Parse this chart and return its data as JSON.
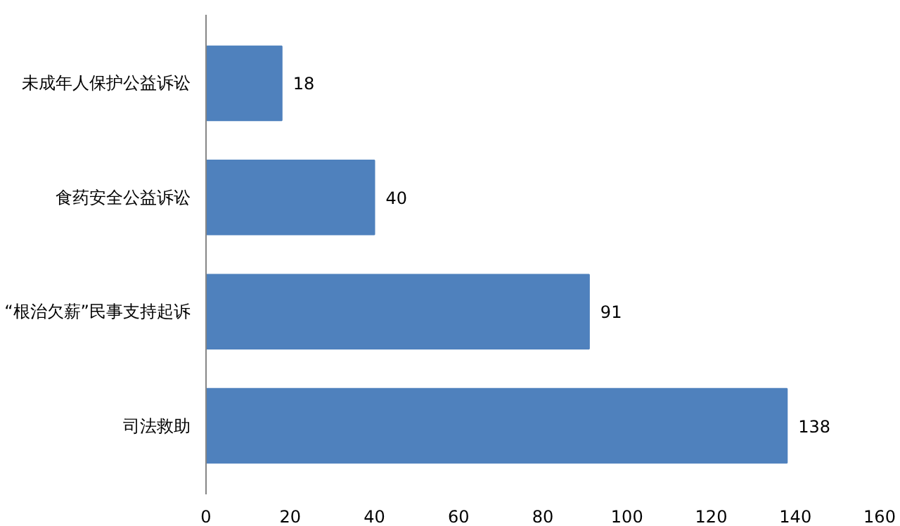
{
  "chart_data": {
    "type": "bar",
    "orientation": "horizontal",
    "categories": [
      "未成年人保护公益诉讼",
      "食药安全公益诉讼",
      "“根治欠薪”民事支持起诉",
      "司法救助"
    ],
    "values": [
      18,
      40,
      91,
      138
    ],
    "color": "#4f81bd",
    "data_labels": true,
    "xlim": [
      0,
      160
    ],
    "xticks": [
      0,
      20,
      40,
      60,
      80,
      100,
      120,
      140,
      160
    ],
    "grid": false
  }
}
